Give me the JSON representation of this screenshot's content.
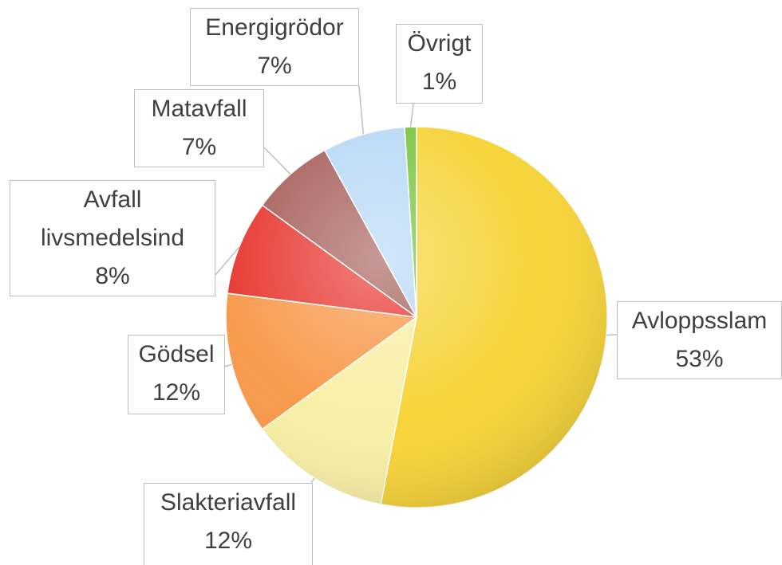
{
  "chart_data": {
    "type": "pie",
    "categories": [
      "Avloppsslam",
      "Slakteriavfall",
      "Gödsel",
      "Avfall livsmedelsind",
      "Matavfall",
      "Energigrödor",
      "Övrigt"
    ],
    "values": [
      53,
      12,
      12,
      8,
      7,
      7,
      1
    ],
    "value_labels": [
      "53%",
      "12%",
      "12%",
      "8%",
      "7%",
      "7%",
      "1%"
    ],
    "colors": [
      "#f6d43a",
      "#f8efa6",
      "#f79a4c",
      "#e83a34",
      "#a8625e",
      "#b9d9f6",
      "#7cc444"
    ]
  }
}
